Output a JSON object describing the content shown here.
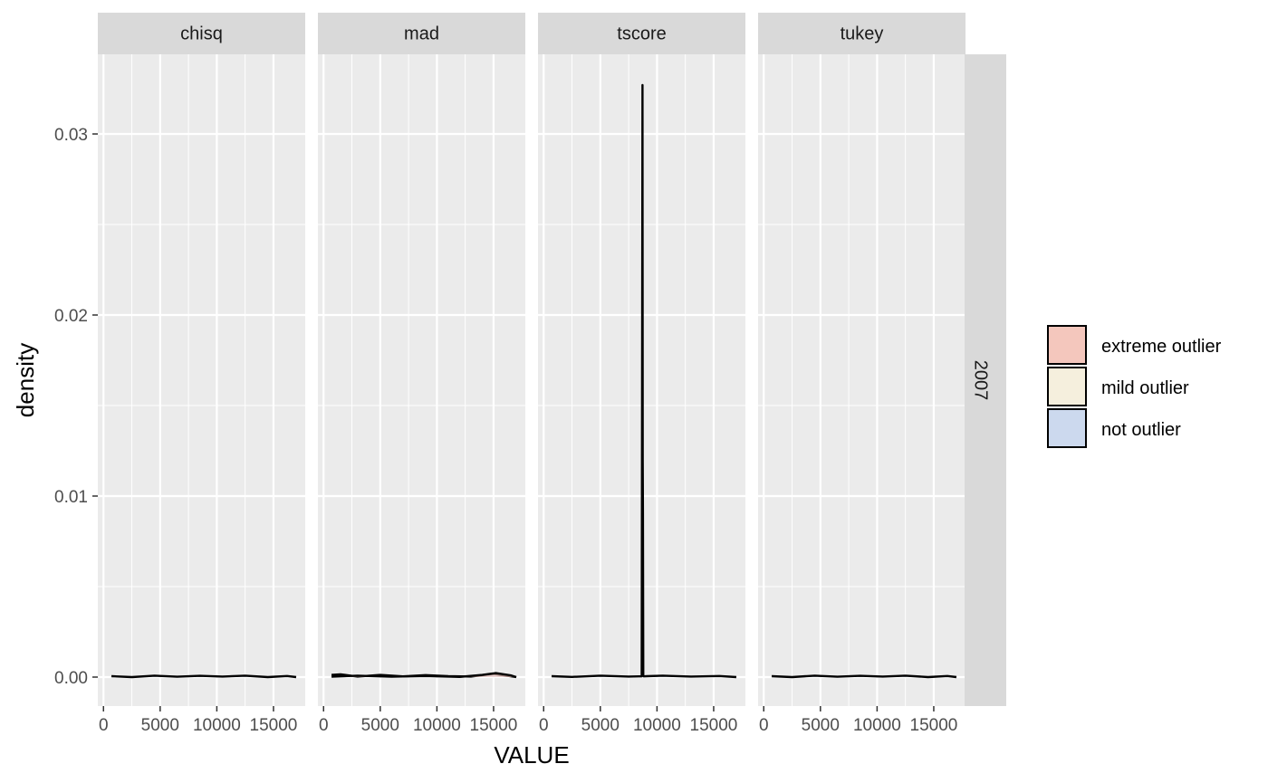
{
  "chart_data": {
    "type": "area",
    "xlabel": "VALUE",
    "ylabel": "density",
    "xlim": [
      -500,
      17800
    ],
    "ylim": [
      -0.0016,
      0.0344
    ],
    "x_ticks": [
      0,
      5000,
      10000,
      15000
    ],
    "x_tick_labels": [
      "0",
      "5000",
      "10000",
      "15000"
    ],
    "y_ticks": [
      0.0,
      0.01,
      0.02,
      0.03
    ],
    "y_tick_labels": [
      "0.00",
      "0.01",
      "0.02",
      "0.03"
    ],
    "row_strip": "2007",
    "grid": true,
    "legend": {
      "placement": "right",
      "title": "",
      "items": [
        {
          "label": "extreme outlier",
          "color": "#f4c7bd"
        },
        {
          "label": "mild outlier",
          "color": "#f5efdd"
        },
        {
          "label": "not outlier",
          "color": "#ccd9ee"
        }
      ]
    },
    "panels": [
      {
        "name": "chisq",
        "series": [
          {
            "label": "not outlier",
            "x": [
              700,
              2500,
              4500,
              6500,
              8500,
              10500,
              12500,
              14500,
              16200,
              17000
            ],
            "y": [
              5e-05,
              0.0,
              8e-05,
              2e-05,
              7e-05,
              3e-05,
              8e-05,
              0.0,
              6e-05,
              0.0
            ]
          }
        ]
      },
      {
        "name": "mad",
        "series": [
          {
            "label": "not outlier",
            "x": [
              700,
              1500,
              3000,
              5000,
              7000,
              9000,
              11000,
              13000,
              15000,
              16500,
              17000
            ],
            "y": [
              0.00012,
              0.00015,
              3e-05,
              0.00012,
              4e-05,
              0.00011,
              5e-05,
              3e-05,
              0.00018,
              5e-05,
              0.0
            ]
          },
          {
            "label": "extreme outlier",
            "x": [
              700,
              3000,
              6000,
              9000,
              12000,
              14000,
              15200,
              16500,
              17000
            ],
            "y": [
              2e-05,
              8e-05,
              2e-05,
              6e-05,
              1e-05,
              0.00012,
              0.00022,
              0.0001,
              0.0
            ]
          }
        ]
      },
      {
        "name": "tscore",
        "series": [
          {
            "label": "not outlier",
            "x": [
              700,
              2500,
              5000,
              7500,
              8400,
              8650,
              8720,
              8740,
              8760,
              8790,
              8830,
              9100,
              10500,
              13000,
              15500,
              17000
            ],
            "y": [
              5e-05,
              1e-05,
              8e-05,
              3e-05,
              4e-05,
              4e-05,
              0.0327,
              0.012,
              0.009,
              8e-05,
              4e-05,
              5e-05,
              8e-05,
              3e-05,
              6e-05,
              0.0
            ]
          }
        ]
      },
      {
        "name": "tukey",
        "series": [
          {
            "label": "not outlier",
            "x": [
              700,
              2500,
              4500,
              6500,
              8500,
              10500,
              12500,
              14500,
              16200,
              17000
            ],
            "y": [
              5e-05,
              0.0,
              8e-05,
              2e-05,
              7e-05,
              3e-05,
              8e-05,
              0.0,
              6e-05,
              0.0
            ]
          }
        ]
      }
    ]
  }
}
